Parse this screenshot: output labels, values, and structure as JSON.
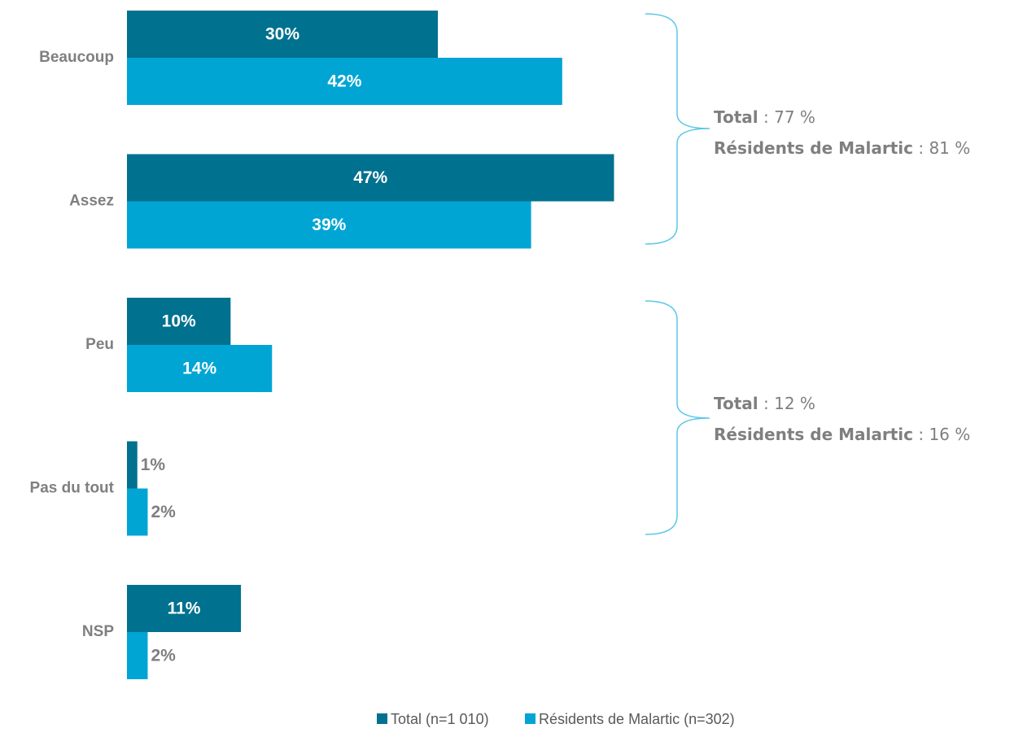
{
  "chart_data": {
    "type": "hbar",
    "categories": [
      "Beaucoup",
      "Assez",
      "Peu",
      "Pas du tout",
      "NSP"
    ],
    "series": [
      {
        "name": "Total (n=1 010)",
        "color": "#00718f",
        "values": [
          30,
          47,
          10,
          1,
          11
        ],
        "value_labels": [
          "30%",
          "47%",
          "10%",
          "1%",
          "11%"
        ]
      },
      {
        "name": "Résidents de Malartic (n=302)",
        "color": "#00a5d4",
        "values": [
          42,
          39,
          14,
          2,
          2
        ],
        "value_labels": [
          "42%",
          "39%",
          "14%",
          "2%",
          "2%"
        ]
      }
    ],
    "xlim": [
      0,
      60
    ],
    "annotations": [
      {
        "lines": [
          {
            "bold": "Total",
            "text": " : 77 %"
          },
          {
            "bold": "Résidents de Malartic",
            "text": " : 81 %"
          }
        ]
      },
      {
        "lines": [
          {
            "bold": "Total",
            "text": " : 12 %"
          },
          {
            "bold": "Résidents de Malartic",
            "text": " : 16 %"
          }
        ]
      }
    ]
  }
}
